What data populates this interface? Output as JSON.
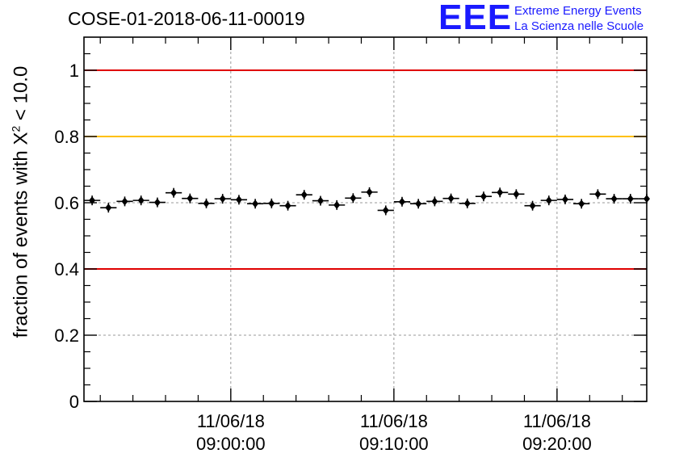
{
  "header": {
    "run_title": "COSE-01-2018-06-11-00019"
  },
  "logo": {
    "mark": "EEE",
    "line1": "Extreme Energy Events",
    "line2": "La Scienza nelle Scuole",
    "color": "#1a1aff"
  },
  "chart_data": {
    "type": "scatter",
    "ylabel_prefix": "fraction of events with X",
    "ylabel_sup": "2",
    "ylabel_suffix": " < 10.0",
    "xlabel": "",
    "ylim": [
      0,
      1.1
    ],
    "xlim": [
      "11/06/18 08:51:00",
      "11/06/18 09:25:30"
    ],
    "y_ticks": [
      "0",
      "0.2",
      "0.4",
      "0.6",
      "0.8",
      "1"
    ],
    "x_ticks": [
      {
        "date": "11/06/18",
        "time": "09:00:00"
      },
      {
        "date": "11/06/18",
        "time": "09:10:00"
      },
      {
        "date": "11/06/18",
        "time": "09:20:00"
      }
    ],
    "grid": true,
    "reference_lines": [
      {
        "y": 1.0,
        "color": "#e00000"
      },
      {
        "y": 0.8,
        "color": "#ffc000"
      },
      {
        "y": 0.4,
        "color": "#e00000"
      }
    ],
    "bin_minutes": 1,
    "x": [
      "08:51:30",
      "08:52:30",
      "08:53:30",
      "08:54:30",
      "08:55:30",
      "08:56:30",
      "08:57:30",
      "08:58:30",
      "08:59:30",
      "09:00:30",
      "09:01:30",
      "09:02:30",
      "09:03:30",
      "09:04:30",
      "09:05:30",
      "09:06:30",
      "09:07:30",
      "09:08:30",
      "09:09:30",
      "09:10:30",
      "09:11:30",
      "09:12:30",
      "09:13:30",
      "09:14:30",
      "09:15:30",
      "09:16:30",
      "09:17:30",
      "09:18:30",
      "09:19:30",
      "09:20:30",
      "09:21:30",
      "09:22:30",
      "09:23:30",
      "09:24:30",
      "09:25:30"
    ],
    "y": [
      0.607,
      0.585,
      0.604,
      0.607,
      0.601,
      0.63,
      0.613,
      0.598,
      0.612,
      0.609,
      0.597,
      0.598,
      0.591,
      0.624,
      0.606,
      0.593,
      0.614,
      0.632,
      0.577,
      0.603,
      0.597,
      0.604,
      0.613,
      0.598,
      0.619,
      0.631,
      0.626,
      0.591,
      0.607,
      0.61,
      0.597,
      0.626,
      0.612,
      0.612,
      0.612
    ],
    "marker_color": "#000000"
  }
}
